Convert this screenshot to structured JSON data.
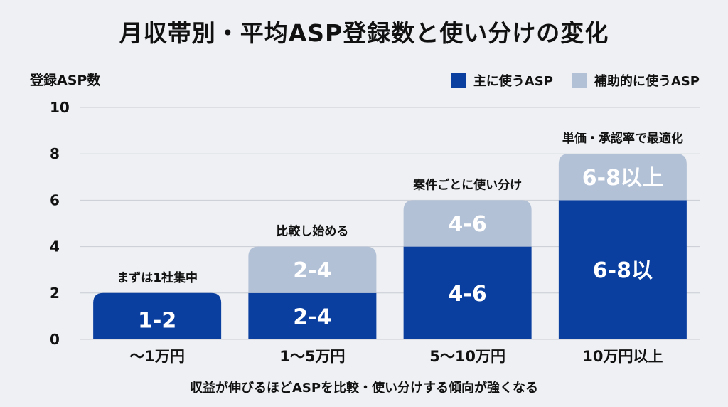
{
  "chart_data": {
    "type": "bar",
    "stacked": true,
    "title": "月収帯別・平均ASP登録数と使い分けの変化",
    "ylabel": "登録ASP数",
    "xlabel": "",
    "ylim": [
      0,
      10
    ],
    "yticks": [
      0,
      2,
      4,
      6,
      8,
      10
    ],
    "grid": true,
    "legend_position": "top-right",
    "categories": [
      "〜1万円",
      "1〜5万円",
      "5〜10万円",
      "10万円以上"
    ],
    "series": [
      {
        "name": "主に使うASP",
        "color": "#0a3fa0",
        "values": [
          2,
          2,
          4,
          6
        ],
        "labels": [
          "1-2",
          "2-4",
          "4-6",
          "6-8以"
        ]
      },
      {
        "name": "補助的に使うASP",
        "color": "#b3c1d7",
        "values": [
          0,
          2,
          2,
          2
        ],
        "labels": [
          "",
          "2-4",
          "4-6",
          "6-8以上"
        ]
      }
    ],
    "annotations": [
      "まずは1社集中",
      "比較し始める",
      "案件ごとに使い分け",
      "単価・承認率で最適化"
    ],
    "caption": "収益が伸びるほどASPを比較・使い分けする傾向が強くなる"
  }
}
